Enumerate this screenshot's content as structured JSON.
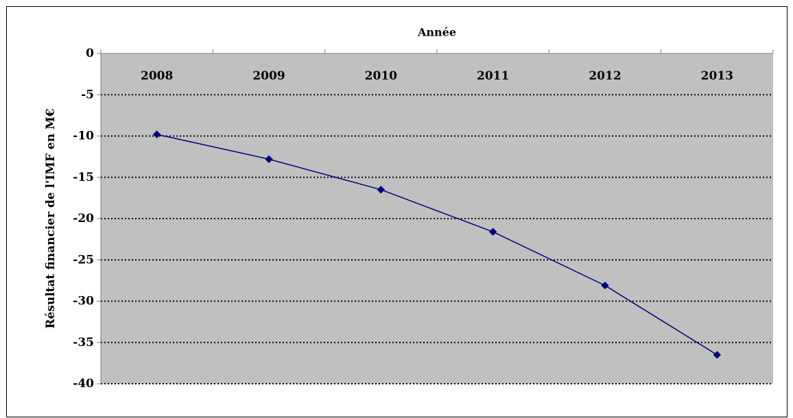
{
  "chart_data": {
    "type": "line",
    "title": "Année",
    "xlabel": "Année",
    "ylabel": "Résultat financier de l'IMF en M€",
    "categories": [
      "2008",
      "2009",
      "2010",
      "2011",
      "2012",
      "2013"
    ],
    "x_axis_position": "top",
    "ylim": [
      -40,
      0
    ],
    "yticks": [
      0,
      -5,
      -10,
      -15,
      -20,
      -25,
      -30,
      -35,
      -40
    ],
    "grid": true,
    "legend": "none",
    "plot_background": "#c0c0c0",
    "series": [
      {
        "color": "#000080",
        "marker": "diamond",
        "values": [
          -9.8,
          -12.8,
          -16.5,
          -21.6,
          -28.1,
          -36.5
        ]
      }
    ]
  }
}
